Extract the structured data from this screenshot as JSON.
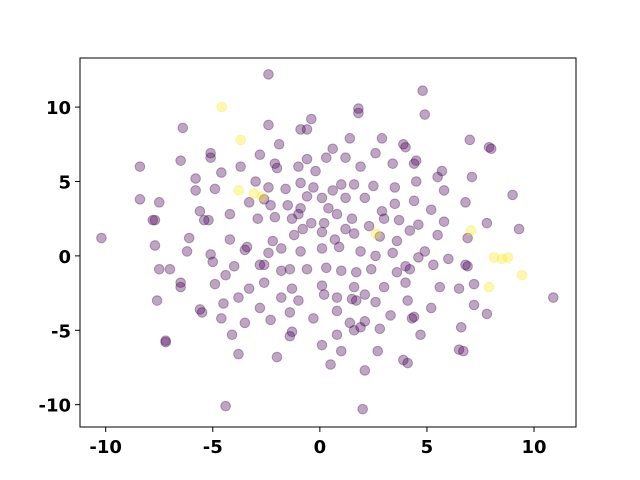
{
  "chart_data": {
    "type": "scatter",
    "xlim": [
      -11.2,
      11.96
    ],
    "ylim": [
      -11.5,
      13.3
    ],
    "xticks": [
      -10,
      -5,
      0,
      5,
      10
    ],
    "yticks": [
      -10,
      -5,
      0,
      5,
      10
    ],
    "series": [
      {
        "color": "#440154",
        "x": [
          -2.4,
          4.8,
          -4.4,
          2.0,
          -10.2,
          10.9,
          -8.4,
          -7.2,
          -7.2,
          -4.2,
          -1.0,
          8.0,
          7.9,
          1.8,
          1.8,
          4.9,
          -6.4,
          -2.4,
          -0.9,
          -0.6,
          -0.4,
          1.4,
          2.9,
          3.9,
          4.0,
          7.0,
          -8.4,
          -6.5,
          -5.1,
          -5.1,
          -3.7,
          -2.8,
          -2.1,
          -2.0,
          -1.9,
          -1.0,
          -0.6,
          -0.2,
          0.3,
          0.6,
          1.2,
          1.9,
          2.6,
          3.4,
          4.5,
          4.4,
          5.7,
          -5.8,
          -5.8,
          -4.9,
          -4.6,
          -3.0,
          -2.4,
          -1.6,
          -0.9,
          -0.6,
          -0.3,
          0.6,
          1.0,
          1.6,
          2.5,
          3.5,
          4.5,
          5.5,
          7.1,
          -7.5,
          -5.6,
          -3.3,
          -2.6,
          -2.3,
          -1.5,
          -0.9,
          0.1,
          0.4,
          1.2,
          2.1,
          2.9,
          3.5,
          4.4,
          5.2,
          5.8,
          6.8,
          -7.8,
          -7.7,
          -5.4,
          -5.2,
          -2.9,
          -2.1,
          -1.3,
          -0.4,
          0.2,
          0.8,
          1.5,
          2.3,
          3.0,
          3.7,
          4.6,
          5.8,
          7.8,
          -6.1,
          -4.2,
          -2.2,
          -1.2,
          -0.8,
          0.1,
          0.7,
          1.2,
          1.6,
          2.8,
          3.6,
          4.2,
          5.5,
          6.9,
          9.3,
          -7.7,
          -6.2,
          -5.1,
          -3.4,
          -3.5,
          -2.4,
          -1.8,
          -0.9,
          0.1,
          0.9,
          1.9,
          2.6,
          3.4,
          4.9,
          4.6,
          6.0,
          -7.5,
          -7.0,
          -6.5,
          -5.0,
          -4.4,
          -4.0,
          -2.8,
          -2.6,
          -1.8,
          -1.4,
          -0.6,
          0.3,
          1.0,
          1.7,
          2.4,
          3.6,
          4.0,
          4.2,
          5.3,
          6.8,
          6.9,
          -6.5,
          -4.9,
          -3.8,
          -2.6,
          -1.3,
          0.1,
          1.6,
          2.1,
          3.0,
          4.0,
          5.6,
          6.5,
          7.2,
          -7.6,
          -5.6,
          -5.5,
          -4.5,
          -3.3,
          -2.8,
          -1.8,
          -1.0,
          0.2,
          0.8,
          1.5,
          1.7,
          2.6,
          4.1,
          5.2,
          7.2,
          7.8,
          -4.6,
          -3.5,
          -2.3,
          -1.4,
          -0.3,
          0.8,
          1.4,
          2.1,
          3.3,
          4.3,
          4.4,
          6.6,
          -4.1,
          -3.8,
          -1.4,
          -1.3,
          0.1,
          0.8,
          1.6,
          1.9,
          2.8,
          4.7,
          -2.0,
          1.0,
          2.7,
          3.9,
          4.1,
          6.5,
          6.7,
          0.5,
          2.1,
          9.0
        ],
        "values": [
          12.2,
          11.1,
          -10.1,
          -10.3,
          1.2,
          -2.8,
          6.0,
          -5.7,
          -5.8,
          2.8,
          2.8,
          7.2,
          7.3,
          9.9,
          9.6,
          9.5,
          8.6,
          8.8,
          8.5,
          8.5,
          9.2,
          7.9,
          7.9,
          7.5,
          7.3,
          7.8,
          3.8,
          6.4,
          6.9,
          6.6,
          6.0,
          6.8,
          6.2,
          5.9,
          7.5,
          6.0,
          6.5,
          5.7,
          6.6,
          7.2,
          6.6,
          6.0,
          6.9,
          6.2,
          6.4,
          6.2,
          5.7,
          5.2,
          4.4,
          4.5,
          5.6,
          5.0,
          4.6,
          4.5,
          4.9,
          4.0,
          4.6,
          4.4,
          4.8,
          4.8,
          4.7,
          4.6,
          5.0,
          5.3,
          5.3,
          3.6,
          3.0,
          3.6,
          3.8,
          3.4,
          3.4,
          3.2,
          3.9,
          3.2,
          3.9,
          3.9,
          3.0,
          3.5,
          3.7,
          3.1,
          4.4,
          3.6,
          2.4,
          2.4,
          2.4,
          2.4,
          2.5,
          2.6,
          2.5,
          2.2,
          2.2,
          2.8,
          2.5,
          2.0,
          2.5,
          2.4,
          2.1,
          2.3,
          2.2,
          1.2,
          1.1,
          1.0,
          1.4,
          1.8,
          1.6,
          1.1,
          1.8,
          1.5,
          1.3,
          1.0,
          1.7,
          1.4,
          1.2,
          1.8,
          0.7,
          0.3,
          0.1,
          0.6,
          0.4,
          0.2,
          0.5,
          0.3,
          0.5,
          0.6,
          0.3,
          0.0,
          0.2,
          0.3,
          -0.1,
          -0.2,
          -0.9,
          -0.9,
          -1.8,
          -0.4,
          -1.3,
          -0.7,
          -0.6,
          -0.6,
          -1.0,
          -0.9,
          -0.9,
          -0.8,
          -1.0,
          -1.1,
          -0.9,
          -1.1,
          -0.7,
          -0.9,
          -0.6,
          -0.6,
          -0.7,
          -2.1,
          -1.9,
          -2.8,
          -1.8,
          -2.2,
          -2.0,
          -2.1,
          -2.6,
          -2.1,
          -1.8,
          -2.1,
          -2.2,
          -1.9,
          -3.0,
          -3.6,
          -3.8,
          -3.2,
          -2.2,
          -3.5,
          -2.8,
          -3.0,
          -2.6,
          -2.8,
          -2.9,
          -3.0,
          -3.1,
          -3.0,
          -3.5,
          -3.3,
          -3.9,
          -4.2,
          -4.5,
          -4.3,
          -3.8,
          -4.2,
          -3.7,
          -4.5,
          -4.4,
          -4.0,
          -4.2,
          -4.1,
          -4.8,
          -5.3,
          -6.6,
          -5.4,
          -5.1,
          -6.0,
          -5.3,
          -5.0,
          -4.8,
          -4.9,
          -5.3,
          -6.8,
          -6.4,
          -6.4,
          -7.0,
          -7.2,
          -6.3,
          -6.4,
          -7.3,
          -7.7,
          4.1
        ]
      },
      {
        "color": "#fde725",
        "x": [
          -4.58,
          -3.69,
          -3.79,
          -3.08,
          -2.71,
          2.62,
          7.06,
          7.9,
          8.13,
          8.5,
          8.79,
          9.44
        ],
        "values": [
          10.0,
          7.8,
          4.4,
          4.2,
          4.0,
          1.5,
          1.7,
          -2.1,
          -0.1,
          -0.2,
          -0.1,
          -1.3
        ]
      }
    ]
  }
}
